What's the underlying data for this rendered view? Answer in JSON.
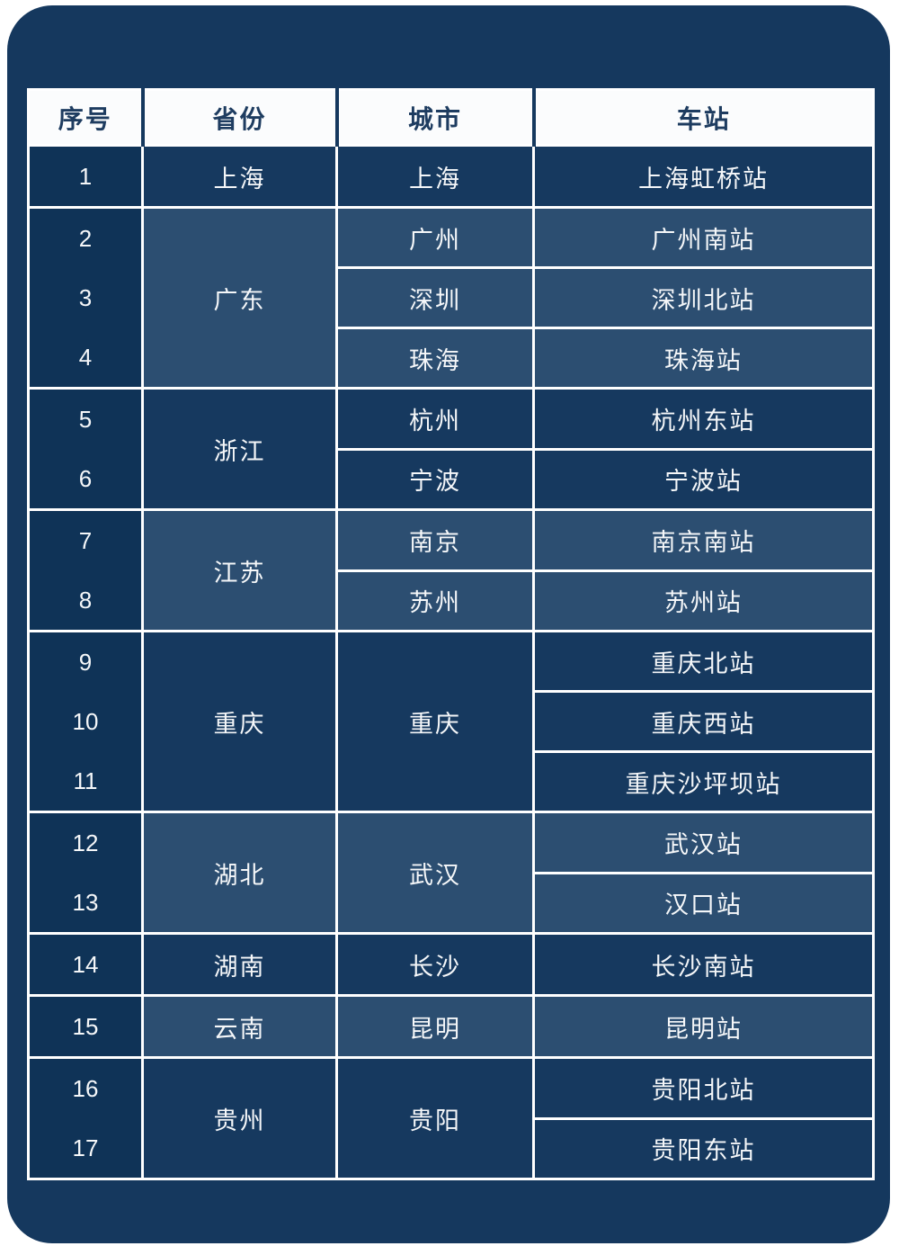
{
  "colors": {
    "page_bg": "#FFFFFF",
    "card_bg": "#15385E",
    "row_dark": "#16395F",
    "row_light": "#2C4E71",
    "serial_col_bg": "#0F3357",
    "header_bg": "#FBFCFD",
    "header_text": "#1E3C60",
    "body_text": "#F5F7F9",
    "grid_line": "#FFFFFF"
  },
  "chart_data": {
    "type": "table",
    "title": "",
    "columns": [
      "序号",
      "省份",
      "城市",
      "车站"
    ],
    "rows": [
      [
        "1",
        "上海",
        "上海",
        "上海虹桥站"
      ],
      [
        "2",
        "广东",
        "广州",
        "广州南站"
      ],
      [
        "3",
        "广东",
        "深圳",
        "深圳北站"
      ],
      [
        "4",
        "广东",
        "珠海",
        "珠海站"
      ],
      [
        "5",
        "浙江",
        "杭州",
        "杭州东站"
      ],
      [
        "6",
        "浙江",
        "宁波",
        "宁波站"
      ],
      [
        "7",
        "江苏",
        "南京",
        "南京南站"
      ],
      [
        "8",
        "江苏",
        "苏州",
        "苏州站"
      ],
      [
        "9",
        "重庆",
        "重庆",
        "重庆北站"
      ],
      [
        "10",
        "重庆",
        "重庆",
        "重庆西站"
      ],
      [
        "11",
        "重庆",
        "重庆",
        "重庆沙坪坝站"
      ],
      [
        "12",
        "湖北",
        "武汉",
        "武汉站"
      ],
      [
        "13",
        "湖北",
        "武汉",
        "汉口站"
      ],
      [
        "14",
        "湖南",
        "长沙",
        "长沙南站"
      ],
      [
        "15",
        "云南",
        "昆明",
        "昆明站"
      ],
      [
        "16",
        "贵州",
        "贵阳",
        "贵阳北站"
      ],
      [
        "17",
        "贵州",
        "贵阳",
        "贵阳东站"
      ]
    ]
  },
  "table": {
    "headers": [
      "序号",
      "省份",
      "城市",
      "车站"
    ],
    "groups": [
      {
        "province": "上海",
        "shade": "dark",
        "rows": [
          {
            "no": "1",
            "city": "上海",
            "station": "上海虹桥站"
          }
        ]
      },
      {
        "province": "广东",
        "shade": "light",
        "rows": [
          {
            "no": "2",
            "city": "广州",
            "station": "广州南站"
          },
          {
            "no": "3",
            "city": "深圳",
            "station": "深圳北站"
          },
          {
            "no": "4",
            "city": "珠海",
            "station": "珠海站"
          }
        ]
      },
      {
        "province": "浙江",
        "shade": "dark",
        "rows": [
          {
            "no": "5",
            "city": "杭州",
            "station": "杭州东站"
          },
          {
            "no": "6",
            "city": "宁波",
            "station": "宁波站"
          }
        ]
      },
      {
        "province": "江苏",
        "shade": "light",
        "rows": [
          {
            "no": "7",
            "city": "南京",
            "station": "南京南站"
          },
          {
            "no": "8",
            "city": "苏州",
            "station": "苏州站"
          }
        ]
      },
      {
        "province": "重庆",
        "shade": "dark",
        "city_merged": "重庆",
        "rows": [
          {
            "no": "9",
            "station": "重庆北站"
          },
          {
            "no": "10",
            "station": "重庆西站"
          },
          {
            "no": "11",
            "station": "重庆沙坪坝站"
          }
        ]
      },
      {
        "province": "湖北",
        "shade": "light",
        "city_merged": "武汉",
        "rows": [
          {
            "no": "12",
            "station": "武汉站"
          },
          {
            "no": "13",
            "station": "汉口站"
          }
        ]
      },
      {
        "province": "湖南",
        "shade": "dark",
        "rows": [
          {
            "no": "14",
            "city": "长沙",
            "station": "长沙南站"
          }
        ]
      },
      {
        "province": "云南",
        "shade": "light",
        "rows": [
          {
            "no": "15",
            "city": "昆明",
            "station": "昆明站"
          }
        ]
      },
      {
        "province": "贵州",
        "shade": "dark",
        "city_merged": "贵阳",
        "rows": [
          {
            "no": "16",
            "station": "贵阳北站"
          },
          {
            "no": "17",
            "station": "贵阳东站"
          }
        ]
      }
    ]
  }
}
